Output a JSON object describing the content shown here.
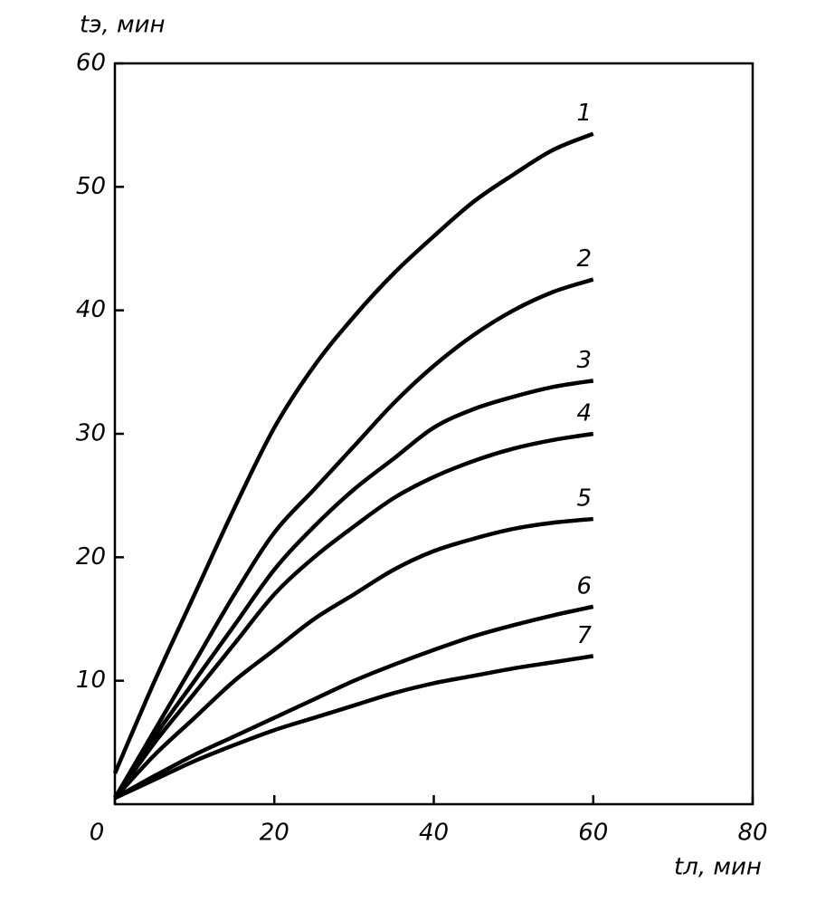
{
  "chart_data": {
    "type": "line",
    "xlabel": "tл, мин",
    "ylabel": "tэ, мин",
    "x": [
      0,
      5,
      10,
      15,
      20,
      25,
      30,
      35,
      40,
      45,
      50,
      55,
      60
    ],
    "series": [
      {
        "name": "1",
        "color": "#000000",
        "values": [
          2.5,
          10,
          17,
          24,
          30.5,
          35.5,
          39.5,
          43,
          46,
          48.8,
          51,
          53,
          54.3
        ]
      },
      {
        "name": "2",
        "color": "#000000",
        "values": [
          0.5,
          6,
          11.5,
          17,
          22,
          25.5,
          29,
          32.5,
          35.5,
          38,
          40,
          41.5,
          42.5
        ]
      },
      {
        "name": "3",
        "color": "#000000",
        "values": [
          0.5,
          5.5,
          10,
          14.5,
          19,
          22.5,
          25.5,
          28,
          30.5,
          32,
          33,
          33.8,
          34.3
        ]
      },
      {
        "name": "4",
        "color": "#000000",
        "values": [
          0.5,
          5,
          9,
          13,
          17,
          20,
          22.5,
          24.8,
          26.5,
          27.8,
          28.8,
          29.5,
          30
        ]
      },
      {
        "name": "5",
        "color": "#000000",
        "values": [
          0.5,
          4,
          7,
          10,
          12.5,
          15,
          17,
          19,
          20.5,
          21.5,
          22.3,
          22.8,
          23.1
        ]
      },
      {
        "name": "6",
        "color": "#000000",
        "values": [
          0.5,
          2.3,
          4,
          5.5,
          7,
          8.5,
          10,
          11.3,
          12.5,
          13.6,
          14.5,
          15.3,
          16
        ]
      },
      {
        "name": "7",
        "color": "#000000",
        "values": [
          0.5,
          2,
          3.5,
          4.8,
          6,
          7,
          8,
          9,
          9.8,
          10.4,
          11,
          11.5,
          12
        ]
      }
    ],
    "xlim": [
      0,
      80
    ],
    "xticks": [
      0,
      20,
      40,
      60,
      80
    ],
    "ylim": [
      0,
      60
    ],
    "yticks": [
      10,
      20,
      30,
      40,
      50,
      60
    ]
  }
}
